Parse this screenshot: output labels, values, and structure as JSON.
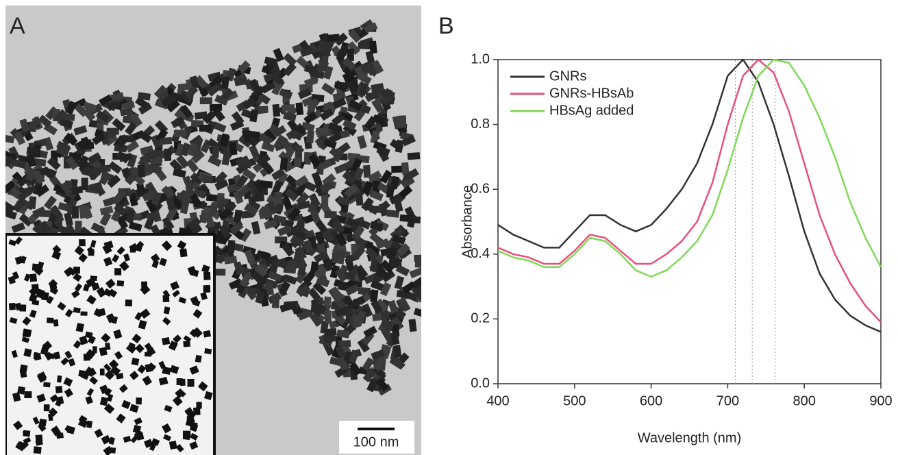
{
  "panels": {
    "a_label": "A",
    "scale_bar": "100 nm",
    "b_label": "B"
  },
  "chart_data": {
    "type": "line",
    "x_label": "Wavelength (nm)",
    "y_label": "Absorbance",
    "x": [
      400,
      420,
      440,
      460,
      480,
      500,
      520,
      540,
      560,
      580,
      600,
      620,
      640,
      660,
      680,
      700,
      720,
      740,
      760,
      780,
      800,
      820,
      840,
      860,
      880,
      900
    ],
    "series": [
      {
        "name": "GNRs",
        "color": "#333333",
        "values": [
          0.49,
          0.46,
          0.44,
          0.42,
          0.42,
          0.47,
          0.52,
          0.52,
          0.49,
          0.47,
          0.49,
          0.54,
          0.6,
          0.68,
          0.8,
          0.95,
          1.0,
          0.93,
          0.8,
          0.64,
          0.47,
          0.34,
          0.26,
          0.21,
          0.18,
          0.16
        ]
      },
      {
        "name": "GNRs-HBsAb",
        "color": "#e8507a",
        "values": [
          0.42,
          0.4,
          0.39,
          0.37,
          0.37,
          0.41,
          0.46,
          0.45,
          0.41,
          0.37,
          0.37,
          0.4,
          0.44,
          0.5,
          0.62,
          0.8,
          0.95,
          1.0,
          0.96,
          0.84,
          0.68,
          0.52,
          0.4,
          0.31,
          0.24,
          0.19
        ]
      },
      {
        "name": "HBsAg added",
        "color": "#7ed957",
        "values": [
          0.41,
          0.39,
          0.38,
          0.36,
          0.36,
          0.4,
          0.45,
          0.44,
          0.4,
          0.35,
          0.33,
          0.35,
          0.39,
          0.44,
          0.52,
          0.66,
          0.82,
          0.95,
          1.0,
          0.99,
          0.92,
          0.82,
          0.7,
          0.56,
          0.45,
          0.36
        ]
      }
    ],
    "reference_lines": [
      710,
      732,
      762
    ],
    "xlim": [
      400,
      900
    ],
    "xticks": [
      400,
      500,
      600,
      700,
      800,
      900
    ],
    "ylim": [
      0,
      1
    ],
    "yticks": [
      {
        "value": 0,
        "label": "0.0"
      },
      {
        "value": 0.2,
        "label": "0.2"
      },
      {
        "value": 0.4,
        "label": "0.4"
      },
      {
        "value": 0.6,
        "label": "0.6"
      },
      {
        "value": 0.8,
        "label": "0.8"
      },
      {
        "value": 1,
        "label": "1.0"
      }
    ],
    "legend": "upper-left"
  }
}
